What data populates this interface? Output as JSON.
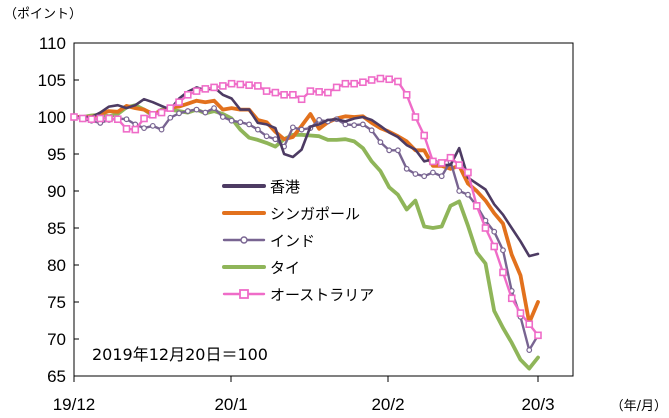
{
  "chart_data": {
    "type": "line",
    "y_unit_label": "（ポイント）",
    "x_unit_label": "（年/月）",
    "note": "2019年12月20日＝100",
    "ylim": [
      65,
      110
    ],
    "yticks": [
      "110",
      "105",
      "100",
      "95",
      "90",
      "85",
      "80",
      "75",
      "70",
      "65"
    ],
    "xticks": [
      "19/12",
      "20/1",
      "20/2",
      "20/3"
    ],
    "legend_position": "center-left",
    "grid": false,
    "series": [
      {
        "name": "香港",
        "color": "#4d3b63",
        "marker": "none",
        "values": [
          100.0,
          100.0,
          100.0,
          100.6,
          101.4,
          101.6,
          101.2,
          101.6,
          102.4,
          102.0,
          101.5,
          101.0,
          102.5,
          103.4,
          104.0,
          103.6,
          104.0,
          103.0,
          102.5,
          101.0,
          101.0,
          99.2,
          99.0,
          98.5,
          95.0,
          94.6,
          95.6,
          98.7,
          99.0,
          99.6,
          99.7,
          99.4,
          99.8,
          100.0,
          99.6,
          98.8,
          97.9,
          97.3,
          96.2,
          95.6,
          94.0,
          94.3,
          93.5,
          93.5,
          95.8,
          91.8,
          91.0,
          90.2,
          88.2,
          86.8,
          85.0,
          83.2,
          81.2,
          81.5
        ]
      },
      {
        "name": "シンガポール",
        "color": "#e2711d",
        "marker": "none",
        "values": [
          100.0,
          100.0,
          100.0,
          100.4,
          100.8,
          100.7,
          101.5,
          101.2,
          101.0,
          100.4,
          100.8,
          101.3,
          101.4,
          101.8,
          102.2,
          102.0,
          102.2,
          101.0,
          101.2,
          101.0,
          101.0,
          99.6,
          99.3,
          98.0,
          97.0,
          97.3,
          98.8,
          100.4,
          98.4,
          99.3,
          99.8,
          100.1,
          100.0,
          100.1,
          99.2,
          98.5,
          98.0,
          97.4,
          96.7,
          95.5,
          95.5,
          93.4,
          93.4,
          93.0,
          93.4,
          91.0,
          90.0,
          88.7,
          87.0,
          85.6,
          81.4,
          78.6,
          72.2,
          75.0
        ]
      },
      {
        "name": "インド",
        "color": "#786491",
        "marker": "circle",
        "values": [
          100.0,
          99.7,
          99.5,
          99.2,
          99.6,
          99.8,
          99.7,
          99.0,
          98.5,
          98.8,
          98.3,
          99.9,
          100.5,
          100.8,
          101.0,
          100.6,
          101.2,
          100.0,
          99.5,
          99.3,
          99.0,
          98.3,
          97.4,
          97.0,
          96.0,
          98.6,
          98.3,
          98.5,
          99.6,
          99.4,
          99.7,
          99.0,
          98.9,
          99.0,
          98.2,
          96.6,
          95.5,
          95.5,
          93.0,
          92.3,
          92.0,
          92.5,
          92.0,
          94.0,
          90.0,
          89.5,
          88.0,
          86.0,
          84.5,
          82.0,
          76.5,
          73.0,
          68.5,
          70.5
        ]
      },
      {
        "name": "タイ",
        "color": "#8fb559",
        "marker": "none",
        "values": [
          100.0,
          100.0,
          100.2,
          100.3,
          100.1,
          100.4,
          101.3,
          101.6,
          101.0,
          100.2,
          101.0,
          101.0,
          100.8,
          100.6,
          101.0,
          100.5,
          100.8,
          100.4,
          99.8,
          98.3,
          97.2,
          96.9,
          96.5,
          96.0,
          97.0,
          97.6,
          97.6,
          97.5,
          97.4,
          96.9,
          96.9,
          97.0,
          96.7,
          95.8,
          94.0,
          92.7,
          90.5,
          89.5,
          87.5,
          88.7,
          85.2,
          85.0,
          85.2,
          88.0,
          88.6,
          85.3,
          81.7,
          80.2,
          73.8,
          71.5,
          69.5,
          67.2,
          66.0,
          67.5
        ]
      },
      {
        "name": "オーストラリア",
        "color": "#ef6cc8",
        "marker": "square",
        "values": [
          100.0,
          99.8,
          99.7,
          99.8,
          99.8,
          99.7,
          98.4,
          98.3,
          99.8,
          100.3,
          100.6,
          101.2,
          102.0,
          103.0,
          103.5,
          103.8,
          104.0,
          104.2,
          104.5,
          104.4,
          104.3,
          104.2,
          103.5,
          103.3,
          103.0,
          103.0,
          102.4,
          103.5,
          103.4,
          103.3,
          104.0,
          104.5,
          104.5,
          104.7,
          105.0,
          105.2,
          105.1,
          104.8,
          103.0,
          100.0,
          97.5,
          94.0,
          93.8,
          94.5,
          93.5,
          92.5,
          88.0,
          85.0,
          82.5,
          79.0,
          75.5,
          73.5,
          72.0,
          70.5
        ]
      }
    ]
  }
}
